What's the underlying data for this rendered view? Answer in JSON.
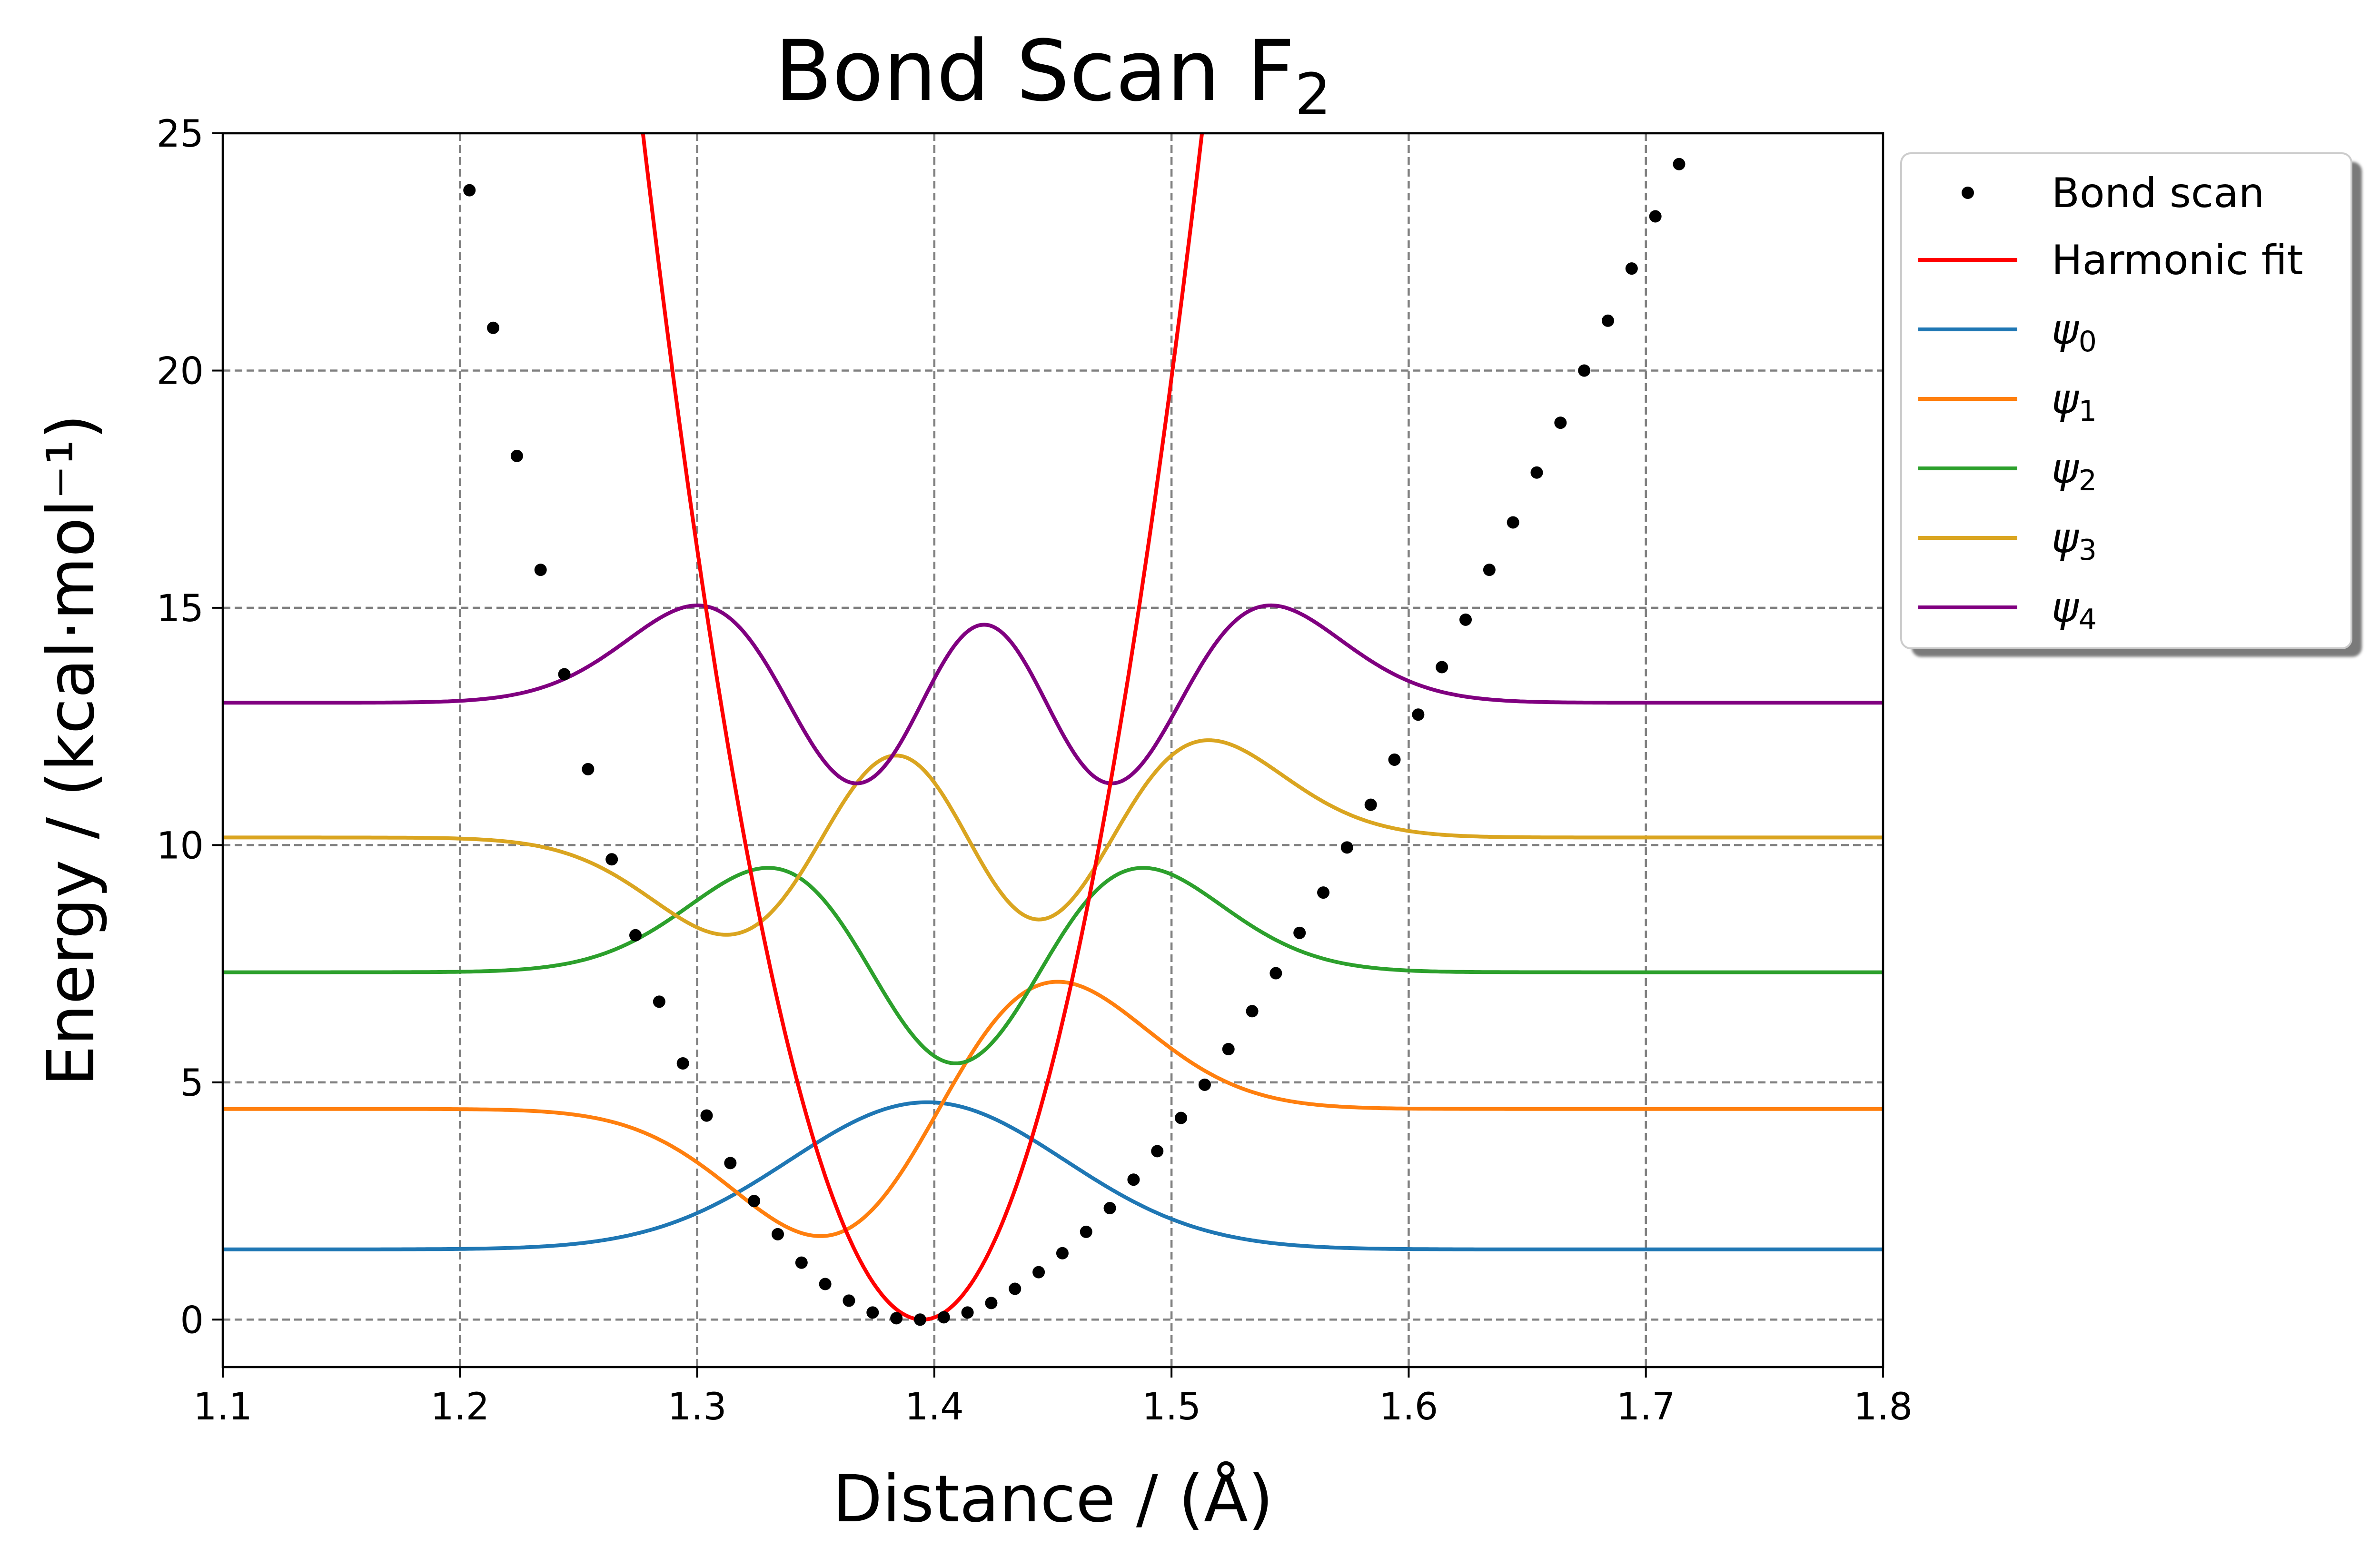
{
  "chart_data": {
    "type": "line",
    "title_main": "Bond Scan F",
    "title_sub": "2",
    "xlabel": "Distance / (Å)",
    "ylabel": "Energy / (kcal·mol⁻¹)",
    "xlim": [
      1.1,
      1.8
    ],
    "ylim": [
      -1,
      25
    ],
    "x_ticks": [
      1.1,
      1.2,
      1.3,
      1.4,
      1.5,
      1.6,
      1.7,
      1.8
    ],
    "x_tick_labels": [
      "1.1",
      "1.2",
      "1.3",
      "1.4",
      "1.5",
      "1.6",
      "1.7",
      "1.8"
    ],
    "y_ticks": [
      0,
      5,
      10,
      15,
      20,
      25
    ],
    "y_tick_labels": [
      "0",
      "5",
      "10",
      "15",
      "20",
      "25"
    ],
    "grid": true,
    "legend_position": "outside-right-top",
    "bond_scan": {
      "name": "Bond scan",
      "color": "#000000",
      "x": [
        1.204,
        1.214,
        1.224,
        1.234,
        1.244,
        1.254,
        1.264,
        1.274,
        1.284,
        1.294,
        1.304,
        1.314,
        1.324,
        1.334,
        1.344,
        1.354,
        1.364,
        1.374,
        1.384,
        1.394,
        1.404,
        1.414,
        1.424,
        1.434,
        1.444,
        1.454,
        1.464,
        1.474,
        1.484,
        1.494,
        1.504,
        1.514,
        1.524,
        1.534,
        1.544,
        1.554,
        1.564,
        1.574,
        1.584,
        1.594,
        1.604,
        1.614,
        1.624,
        1.634,
        1.644,
        1.654,
        1.664,
        1.674,
        1.684,
        1.694,
        1.704,
        1.714
      ],
      "y": [
        23.8,
        20.9,
        18.2,
        15.8,
        13.6,
        11.6,
        9.7,
        8.1,
        6.7,
        5.4,
        4.3,
        3.3,
        2.5,
        1.8,
        1.2,
        0.75,
        0.4,
        0.15,
        0.03,
        0.0,
        0.05,
        0.15,
        0.35,
        0.65,
        1.0,
        1.4,
        1.85,
        2.35,
        2.95,
        3.55,
        4.25,
        4.95,
        5.7,
        6.5,
        7.3,
        8.15,
        9.0,
        9.95,
        10.85,
        11.8,
        12.75,
        13.75,
        14.75,
        15.8,
        16.8,
        17.85,
        18.9,
        20.0,
        21.05,
        22.15,
        23.25,
        24.35
      ]
    },
    "harmonic_fit": {
      "name": "Harmonic fit",
      "color": "#ff0000",
      "x0": 1.395,
      "k": 1800
    },
    "wavefunctions": [
      {
        "name": "ψ0",
        "base": "ψ",
        "sub": "0",
        "color": "#1f77b4",
        "baseline": 1.48,
        "amplitude": 3.1,
        "n": 0,
        "center": 1.397,
        "width": 0.058
      },
      {
        "name": "ψ1",
        "base": "ψ",
        "sub": "1",
        "color": "#ff7f0e",
        "baseline": 4.44,
        "amplitude": 2.68,
        "n": 1,
        "center": 1.402,
        "width": 0.05
      },
      {
        "name": "ψ2",
        "base": "ψ",
        "sub": "2",
        "color": "#2ca02c",
        "baseline": 7.32,
        "amplitude": 2.2,
        "n": 2,
        "center": 1.409,
        "width": 0.05
      },
      {
        "name": "ψ3",
        "base": "ψ",
        "sub": "3",
        "color": "#daa520",
        "baseline": 10.16,
        "amplitude": 2.05,
        "n": 3,
        "center": 1.414,
        "width": 0.05
      },
      {
        "name": "ψ4",
        "base": "ψ",
        "sub": "4",
        "color": "#800080",
        "baseline": 13.0,
        "amplitude": 2.05,
        "n": 4,
        "center": 1.421,
        "width": 0.05
      }
    ]
  }
}
